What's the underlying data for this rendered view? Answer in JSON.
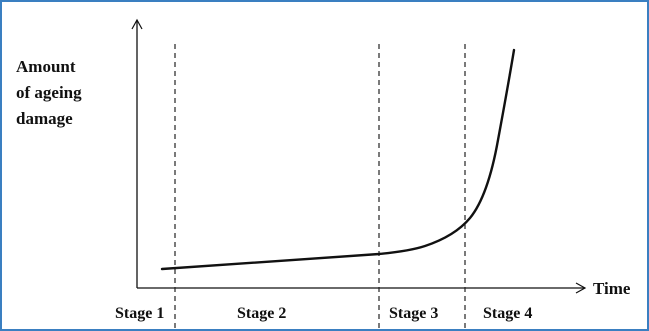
{
  "diagram": {
    "y_axis_label_lines": [
      "Amount",
      "of ageing",
      "damage"
    ],
    "x_axis_label": "Time",
    "stages": [
      "Stage 1",
      "Stage 2",
      "Stage 3",
      "Stage 4"
    ]
  },
  "colors": {
    "frame_border": "#3a7fc1",
    "ink": "#111111"
  }
}
